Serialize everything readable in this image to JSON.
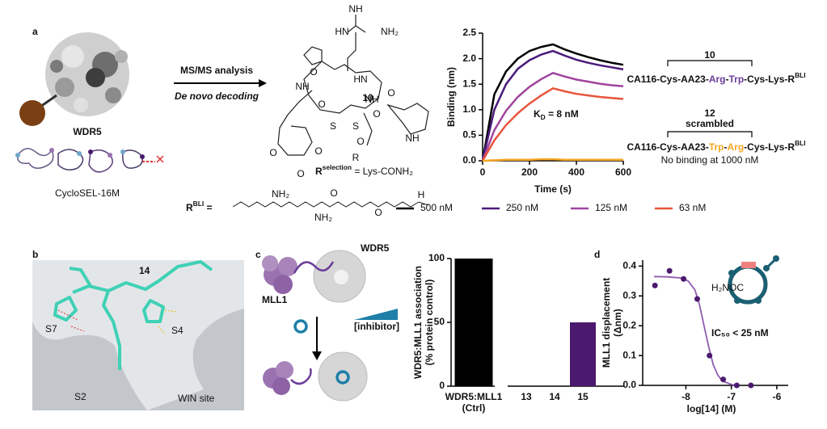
{
  "panel_labels": [
    "a",
    "b",
    "c",
    "d"
  ],
  "scheme": {
    "arrow_top": "MS/MS analysis",
    "arrow_bottom": "De novo decoding",
    "protein": "WDR5",
    "library": "CycloSEL-16M",
    "compound": "10",
    "r_selection": {
      "symbol": "R",
      "sup": "selection",
      "rest": " = Lys-CONH₂"
    },
    "r_bli": {
      "symbol": "R",
      "sup": "BLI",
      "rest": " ="
    },
    "atoms": [
      "NH",
      "HN",
      "NH₂",
      "O",
      "HN",
      "NH",
      "O",
      "S",
      "S",
      "O",
      "NH",
      "O",
      "NH",
      "O",
      "R",
      "O",
      "O",
      "O"
    ],
    "bli_atoms": [
      "NH₂",
      "O",
      "NH₂",
      "O",
      "H"
    ]
  },
  "sequences": [
    {
      "compound": "10",
      "parts": [
        "CA116-Cys-AA23-",
        "Arg",
        "-",
        "Trp",
        "-Cys-Lys-R",
        "BLI"
      ],
      "color": "#6a3d9a"
    },
    {
      "compound": "12",
      "note": "scrambled",
      "parts": [
        "CA116-Cys-AA23-",
        "Trp",
        "-",
        "Arg",
        "-Cys-Lys-R",
        "BLI"
      ],
      "color": "#f5a623",
      "annotation": "No binding at 1000 nM"
    }
  ],
  "structure_b": {
    "compound": "14",
    "pockets": [
      "S7",
      "S4",
      "S2"
    ],
    "site": "WIN site"
  },
  "scheme_c": {
    "protein": "WDR5",
    "partner": "MLL1",
    "inhibitor": "[inhibitor]"
  },
  "scheme_d": {
    "group": "H₂NOC"
  },
  "chart_data": [
    {
      "type": "line",
      "x": [
        0,
        50,
        100,
        150,
        200,
        250,
        300,
        350,
        400,
        450,
        500,
        550,
        600
      ],
      "xlim": [
        0,
        600
      ],
      "xticks": [
        0,
        200,
        400,
        600
      ],
      "ylim": [
        0,
        2.5
      ],
      "yticks": [
        {
          "value": 0,
          "label": "0.0"
        },
        0.5,
        {
          "value": 1,
          "label": "1.0"
        },
        1.5,
        {
          "value": 2,
          "label": "2.0"
        },
        2.5
      ],
      "x_label": "Time (s)",
      "y_label": "Binding (nm)",
      "annotation": {
        "symbol": "K",
        "sub": "D",
        "rest": " = 8 nM"
      },
      "series": [
        {
          "name": "500 nM",
          "color": "#000000",
          "values": [
            0,
            1.3,
            1.75,
            2.0,
            2.15,
            2.23,
            2.28,
            2.18,
            2.1,
            2.03,
            1.97,
            1.92,
            1.88
          ]
        },
        {
          "name": "250 nM",
          "color": "#4b1a7a",
          "values": [
            0,
            1.0,
            1.5,
            1.8,
            1.97,
            2.08,
            2.15,
            2.06,
            1.98,
            1.92,
            1.87,
            1.83,
            1.79
          ]
        },
        {
          "name": "125 nM",
          "color": "#a0449e",
          "values": [
            0,
            0.6,
            0.98,
            1.25,
            1.45,
            1.6,
            1.72,
            1.65,
            1.59,
            1.55,
            1.51,
            1.48,
            1.46
          ]
        },
        {
          "name": "63 nM",
          "color": "#e8553d",
          "values": [
            0,
            0.4,
            0.7,
            0.93,
            1.12,
            1.28,
            1.42,
            1.36,
            1.31,
            1.28,
            1.25,
            1.23,
            1.21
          ]
        },
        {
          "color": "#f5a623",
          "values": [
            0,
            0.01,
            0.02,
            0.02,
            0.02,
            0.03,
            0.03,
            0.02,
            0.02,
            0.02,
            0.02,
            0.02,
            0.02
          ]
        }
      ]
    },
    {
      "type": "bar",
      "categories": [
        "WDR5:MLL1",
        "13",
        "14",
        "15"
      ],
      "category_note": "(Ctrl)",
      "values": [
        100,
        0,
        0,
        50
      ],
      "colors": [
        "#000000",
        "#4b1a6e",
        "#4b1a6e",
        "#4b1a6e"
      ],
      "ylim": [
        0,
        100
      ],
      "yticks": [
        0,
        50,
        100
      ],
      "y_label": [
        "WDR5:MLL1 association",
        "(% protein control)"
      ]
    },
    {
      "type": "scatter",
      "x": [
        -8.68,
        -8.36,
        -8.05,
        -7.75,
        -7.48,
        -7.18,
        -6.88,
        -6.57
      ],
      "values": [
        0.335,
        0.384,
        0.357,
        0.29,
        0.1,
        0.02,
        0,
        0
      ],
      "color": "#4b1a6e",
      "fit": {
        "x": [
          -8.7,
          -8.4,
          -8.1,
          -7.95,
          -7.8,
          -7.7,
          -7.6,
          -7.5,
          -7.4,
          -7.3,
          -7.2,
          -7.0,
          -6.9
        ],
        "values": [
          0.365,
          0.364,
          0.36,
          0.35,
          0.32,
          0.27,
          0.2,
          0.13,
          0.07,
          0.035,
          0.015,
          0.003,
          0
        ],
        "color": "#8e5bb0"
      },
      "xlim": [
        -8.95,
        -5.75
      ],
      "xticks": [
        -8,
        -7,
        -6
      ],
      "ylim": [
        0,
        0.42
      ],
      "yticks": [
        {
          "value": 0,
          "label": "0.0"
        },
        0.1,
        0.2,
        0.3,
        0.4
      ],
      "x_label": "log[14] (M)",
      "y_label": [
        "MLL1 displacement",
        "(Δnm)"
      ],
      "annotation": "IC₅₀ < 25 nM"
    }
  ]
}
